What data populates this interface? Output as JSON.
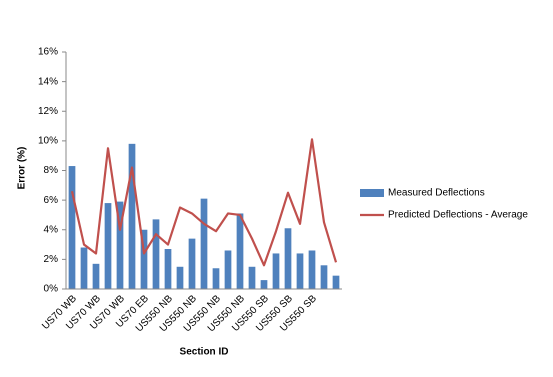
{
  "chart_data": {
    "type": "bar-line",
    "x_label": "Section ID",
    "y_label": "Error (%)",
    "categories": [
      "US70 WB",
      null,
      "US70 WB",
      null,
      "US70 WB",
      null,
      "US70 EB",
      null,
      "US550 NB",
      null,
      "US550 NB",
      null,
      "US550 NB",
      null,
      "US550 NB",
      null,
      "US550 SB",
      null,
      "US550 SB",
      null,
      "US550 SB",
      null,
      null
    ],
    "series": [
      {
        "name": "Measured Deflections",
        "type": "bar",
        "color": "#4f81bd",
        "values": [
          8.3,
          2.8,
          1.7,
          5.8,
          5.9,
          9.8,
          4.0,
          4.7,
          2.7,
          1.5,
          3.4,
          6.1,
          1.4,
          2.6,
          5.1,
          1.5,
          0.6,
          2.4,
          4.1,
          2.4,
          2.6,
          1.6,
          0.9
        ]
      },
      {
        "name": "Predicted Deflections - Average",
        "type": "line",
        "color": "#c0504d",
        "values": [
          6.6,
          3.0,
          2.4,
          9.5,
          4.0,
          8.2,
          2.4,
          3.7,
          3.0,
          5.5,
          5.1,
          4.4,
          3.9,
          5.1,
          5.0,
          3.4,
          1.6,
          3.9,
          6.5,
          4.4,
          10.1,
          4.5,
          1.8
        ]
      }
    ],
    "ylim": [
      0,
      16
    ],
    "yticks": [
      {
        "value": 0,
        "label": "0%"
      },
      {
        "value": 2,
        "label": "2%"
      },
      {
        "value": 4,
        "label": "4%"
      },
      {
        "value": 6,
        "label": "6%"
      },
      {
        "value": 8,
        "label": "8%"
      },
      {
        "value": 10,
        "label": "10%"
      },
      {
        "value": 12,
        "label": "12%"
      },
      {
        "value": 14,
        "label": "14%"
      },
      {
        "value": 16,
        "label": "16%"
      }
    ],
    "grid": false,
    "legend": "right"
  }
}
